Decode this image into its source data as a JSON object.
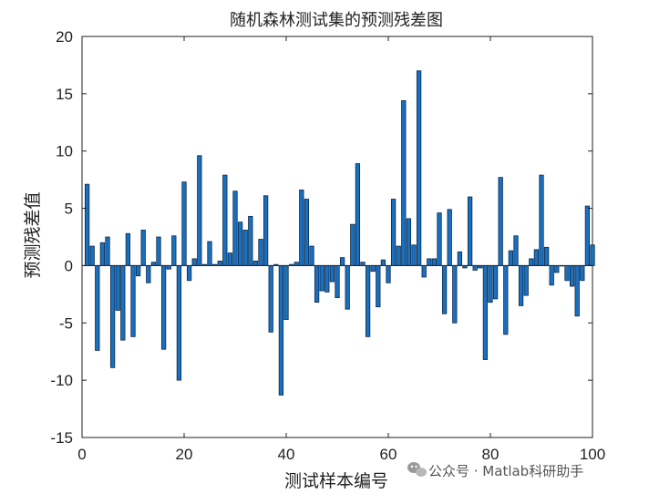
{
  "watermark": {
    "text": "公众号 · Matlab科研助手",
    "icon": "wechat-icon"
  },
  "colors": {
    "bar_fill": "#1a6fbf",
    "bar_stroke": "#0d2a48",
    "axis": "#222222"
  },
  "chart_data": {
    "type": "bar",
    "title": "随机森林测试集的预测残差图",
    "xlabel": "测试样本编号",
    "ylabel": "预测残差值",
    "xlim": [
      0,
      100
    ],
    "ylim": [
      -15,
      20
    ],
    "xticks": [
      0,
      20,
      40,
      60,
      80,
      100
    ],
    "yticks": [
      -15,
      -10,
      -5,
      0,
      5,
      10,
      15,
      20
    ],
    "x": [
      1,
      2,
      3,
      4,
      5,
      6,
      7,
      8,
      9,
      10,
      11,
      12,
      13,
      14,
      15,
      16,
      17,
      18,
      19,
      20,
      21,
      22,
      23,
      24,
      25,
      26,
      27,
      28,
      29,
      30,
      31,
      32,
      33,
      34,
      35,
      36,
      37,
      38,
      39,
      40,
      41,
      42,
      43,
      44,
      45,
      46,
      47,
      48,
      49,
      50,
      51,
      52,
      53,
      54,
      55,
      56,
      57,
      58,
      59,
      60,
      61,
      62,
      63,
      64,
      65,
      66,
      67,
      68,
      69,
      70,
      71,
      72,
      73,
      74,
      75,
      76,
      77,
      78,
      79,
      80,
      81,
      82,
      83,
      84,
      85,
      86,
      87,
      88,
      89,
      90,
      91,
      92,
      93,
      94,
      95,
      96,
      97,
      98,
      99,
      100
    ],
    "values": [
      7.1,
      1.7,
      -7.4,
      2.0,
      2.5,
      -8.9,
      -3.9,
      -6.5,
      2.8,
      -6.2,
      -0.9,
      3.1,
      -1.5,
      0.3,
      2.5,
      -7.3,
      -0.3,
      2.6,
      -10.0,
      7.3,
      -1.3,
      0.6,
      9.6,
      0.1,
      2.1,
      0.1,
      0.4,
      7.9,
      1.1,
      6.5,
      3.8,
      3.1,
      4.3,
      0.4,
      2.3,
      6.1,
      -5.8,
      0.1,
      -11.3,
      -4.7,
      0.1,
      0.3,
      6.6,
      5.8,
      1.7,
      -3.2,
      -2.2,
      -2.3,
      -1.4,
      -2.8,
      0.7,
      -3.8,
      3.6,
      8.9,
      0.3,
      -6.2,
      -0.5,
      -3.6,
      0.5,
      -1.5,
      5.8,
      1.7,
      14.4,
      4.1,
      1.8,
      17.0,
      -1.0,
      0.6,
      0.6,
      4.6,
      -4.2,
      4.9,
      -5.0,
      1.2,
      -0.2,
      6.0,
      -0.4,
      -0.2,
      -8.2,
      -3.2,
      -2.9,
      7.7,
      -6.0,
      1.3,
      2.6,
      -3.5,
      -2.6,
      0.6,
      1.4,
      7.9,
      1.6,
      -1.7,
      -0.6,
      0.0,
      -1.3,
      -1.8,
      -4.4,
      -1.3,
      5.2,
      1.8
    ]
  }
}
